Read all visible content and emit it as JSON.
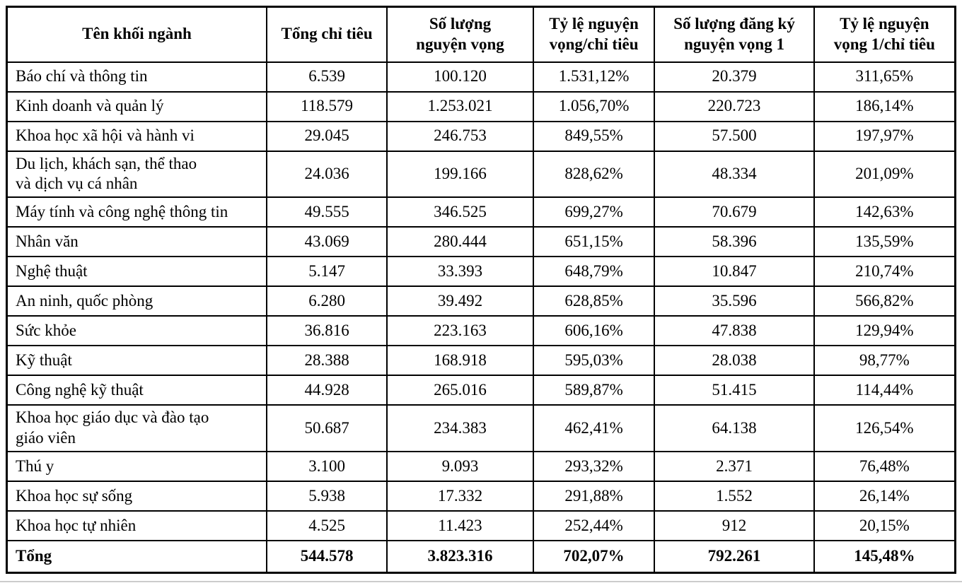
{
  "chart_data": {
    "type": "table",
    "columns": [
      "Tên khối ngành",
      "Tổng chỉ tiêu",
      "Số lượng\nnguyện vọng",
      "Tỷ lệ nguyện\nvọng/chỉ tiêu",
      "Số lượng đăng ký\nnguyện vọng 1",
      "Tỷ lệ nguyện\nvọng 1/chỉ tiêu"
    ],
    "rows": [
      [
        "Báo chí và thông tin",
        "6.539",
        "100.120",
        "1.531,12%",
        "20.379",
        "311,65%"
      ],
      [
        "Kinh doanh và quản lý",
        "118.579",
        "1.253.021",
        "1.056,70%",
        "220.723",
        "186,14%"
      ],
      [
        "Khoa học xã hội và hành vi",
        "29.045",
        "246.753",
        "849,55%",
        "57.500",
        "197,97%"
      ],
      [
        "Du lịch, khách sạn, thể thao\nvà dịch vụ cá nhân",
        "24.036",
        "199.166",
        "828,62%",
        "48.334",
        "201,09%"
      ],
      [
        "Máy tính và công nghệ thông tin",
        "49.555",
        "346.525",
        "699,27%",
        "70.679",
        "142,63%"
      ],
      [
        "Nhân văn",
        "43.069",
        "280.444",
        "651,15%",
        "58.396",
        "135,59%"
      ],
      [
        "Nghệ thuật",
        "5.147",
        "33.393",
        "648,79%",
        "10.847",
        "210,74%"
      ],
      [
        "An ninh, quốc phòng",
        "6.280",
        "39.492",
        "628,85%",
        "35.596",
        "566,82%"
      ],
      [
        "Sức khỏe",
        "36.816",
        "223.163",
        "606,16%",
        "47.838",
        "129,94%"
      ],
      [
        "Kỹ thuật",
        "28.388",
        "168.918",
        "595,03%",
        "28.038",
        "98,77%"
      ],
      [
        "Công nghệ kỹ thuật",
        "44.928",
        "265.016",
        "589,87%",
        "51.415",
        "114,44%"
      ],
      [
        "Khoa học giáo dục và đào tạo\ngiáo viên",
        "50.687",
        "234.383",
        "462,41%",
        "64.138",
        "126,54%"
      ],
      [
        "Thú y",
        "3.100",
        "9.093",
        "293,32%",
        "2.371",
        "76,48%"
      ],
      [
        "Khoa học sự sống",
        "5.938",
        "17.332",
        "291,88%",
        "1.552",
        "26,14%"
      ],
      [
        "Khoa học tự nhiên",
        "4.525",
        "11.423",
        "252,44%",
        "912",
        "20,15%"
      ]
    ],
    "total_row": [
      "Tổng",
      "544.578",
      "3.823.316",
      "702,07%",
      "792.261",
      "145,48%"
    ],
    "layout": {
      "column_width_percents": [
        27.4,
        12.7,
        15.4,
        12.8,
        16.8,
        14.9
      ],
      "grid": "all-borders"
    }
  },
  "colors": {
    "border": "#000000",
    "text": "#000000",
    "background": "#ffffff",
    "bottom_divider": "#cccccc"
  }
}
